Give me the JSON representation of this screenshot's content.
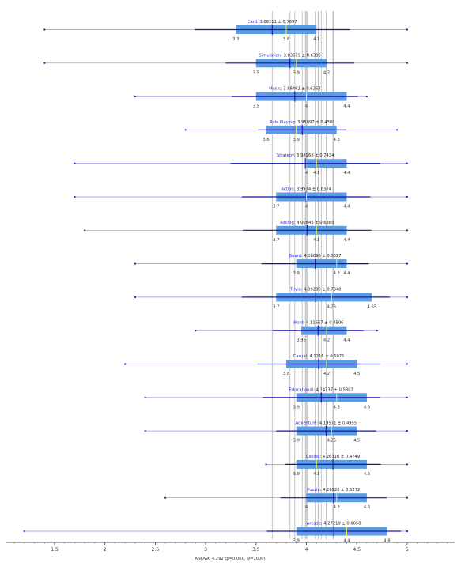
{
  "chart_data": {
    "type": "box",
    "footer": "ANOVA: 4.292 (p=0.000, N=1000)",
    "x_ticks": [
      1.5,
      2,
      2.5,
      3,
      3.5,
      4,
      4.5,
      5
    ],
    "xlim": [
      1.0,
      5.5
    ],
    "series": [
      {
        "name": "Card",
        "mean": 3.66111,
        "sd": 0.7697,
        "q1": 3.3,
        "median": 3.8,
        "q3": 4.1,
        "min": 1.4,
        "max": 5
      },
      {
        "name": "Simulation",
        "mean": 3.83679,
        "sd": 0.6395,
        "q1": 3.5,
        "median": 3.9,
        "q3": 4.2,
        "min": 1.4,
        "max": 5
      },
      {
        "name": "Music",
        "mean": 3.88462,
        "sd": 0.6262,
        "q1": 3.5,
        "median": 4,
        "q3": 4.4,
        "min": 2.3,
        "max": 4.6
      },
      {
        "name": "Role Playing",
        "mean": 3.95897,
        "sd": 0.4389,
        "q1": 3.6,
        "median": 3.9,
        "q3": 4.3,
        "min": 2.8,
        "max": 4.9
      },
      {
        "name": "Strategy",
        "mean": 3.98966,
        "sd": 0.7434,
        "q1": 4,
        "median": 4.1,
        "q3": 4.4,
        "min": 1.7,
        "max": 5
      },
      {
        "name": "Action",
        "mean": 3.9974,
        "sd": 0.6374,
        "q1": 3.7,
        "median": 4,
        "q3": 4.4,
        "min": 1.7,
        "max": 5
      },
      {
        "name": "Racing",
        "mean": 4.00645,
        "sd": 0.6385,
        "q1": 3.7,
        "median": 4.1,
        "q3": 4.4,
        "min": 1.8,
        "max": 5
      },
      {
        "name": "Board",
        "mean": 4.08696,
        "sd": 0.5327,
        "q1": 3.9,
        "median": 4.3,
        "q3": 4.4,
        "min": 2.3,
        "max": 5
      },
      {
        "name": "Trivia",
        "mean": 4.09286,
        "sd": 0.7348,
        "q1": 3.7,
        "median": 4.25,
        "q3": 4.65,
        "min": 2.3,
        "max": 5
      },
      {
        "name": "Word",
        "mean": 4.11667,
        "sd": 0.4506,
        "q1": 3.95,
        "median": 4.2,
        "q3": 4.4,
        "min": 2.9,
        "max": 4.7
      },
      {
        "name": "Casual",
        "mean": 4.1216,
        "sd": 0.6075,
        "q1": 3.8,
        "median": 4.2,
        "q3": 4.5,
        "min": 2.2,
        "max": 5
      },
      {
        "name": "Educational",
        "mean": 4.14737,
        "sd": 0.5807,
        "q1": 3.9,
        "median": 4.3,
        "q3": 4.6,
        "min": 2.4,
        "max": 5
      },
      {
        "name": "Adventure",
        "mean": 4.19571,
        "sd": 0.4955,
        "q1": 3.9,
        "median": 4.25,
        "q3": 4.5,
        "min": 2.4,
        "max": 5
      },
      {
        "name": "Casino",
        "mean": 4.26316,
        "sd": 0.4749,
        "q1": 3.9,
        "median": 4.1,
        "q3": 4.6,
        "min": 3.6,
        "max": 5
      },
      {
        "name": "Puzzle",
        "mean": 4.26928,
        "sd": 0.5272,
        "q1": 4,
        "median": 4.3,
        "q3": 4.6,
        "min": 2.6,
        "max": 5
      },
      {
        "name": "Arcade",
        "mean": 4.27219,
        "sd": 0.6658,
        "q1": 3.9,
        "median": 4.4,
        "q3": 4.8,
        "min": 1.2,
        "max": 5
      }
    ],
    "colors": {
      "box_fill": "#5b9be3",
      "mean_line": "#1f1fa8",
      "sd_line": "#1515aa",
      "whisker": "#8c8ce8",
      "median": "#e0ea52",
      "ref_line": "#bdbdbd",
      "label_name": "#2a2ad0",
      "label_stats": "#222222",
      "axis": "#333333"
    }
  }
}
